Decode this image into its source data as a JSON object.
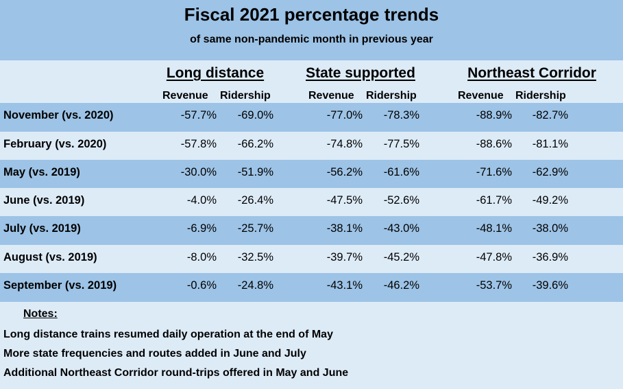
{
  "title": "Fiscal 2021 percentage trends",
  "subtitle": "of same non-pandemic month in previous year",
  "colors": {
    "dark_band": "#9dc3e6",
    "light_band": "#ddebf7"
  },
  "chart_data": {
    "type": "table",
    "groups": [
      {
        "name": "Long distance",
        "columns": [
          "Revenue",
          "Ridership"
        ]
      },
      {
        "name": "State supported",
        "columns": [
          "Revenue",
          "Ridership"
        ]
      },
      {
        "name": "Northeast Corridor",
        "columns": [
          "Revenue",
          "Ridership"
        ]
      }
    ],
    "rows": [
      {
        "label": "November (vs. 2020)",
        "values": [
          "-57.7%",
          "-69.0%",
          "-77.0%",
          "-78.3%",
          "-88.9%",
          "-82.7%"
        ]
      },
      {
        "label": "February (vs. 2020)",
        "values": [
          "-57.8%",
          "-66.2%",
          "-74.8%",
          "-77.5%",
          "-88.6%",
          "-81.1%"
        ]
      },
      {
        "label": "May (vs. 2019)",
        "values": [
          "-30.0%",
          "-51.9%",
          "-56.2%",
          "-61.6%",
          "-71.6%",
          "-62.9%"
        ]
      },
      {
        "label": "June (vs. 2019)",
        "values": [
          "-4.0%",
          "-26.4%",
          "-47.5%",
          "-52.6%",
          "-61.7%",
          "-49.2%"
        ]
      },
      {
        "label": "July (vs. 2019)",
        "values": [
          "-6.9%",
          "-25.7%",
          "-38.1%",
          "-43.0%",
          "-48.1%",
          "-38.0%"
        ]
      },
      {
        "label": "August (vs. 2019)",
        "values": [
          "-8.0%",
          "-32.5%",
          "-39.7%",
          "-45.2%",
          "-47.8%",
          "-36.9%"
        ]
      },
      {
        "label": "September (vs. 2019)",
        "values": [
          "-0.6%",
          "-24.8%",
          "-43.1%",
          "-46.2%",
          "-53.7%",
          "-39.6%"
        ]
      }
    ]
  },
  "notes": {
    "heading": "Notes:",
    "items": [
      "Long distance trains resumed daily operation at the end of May",
      "More state frequencies and routes added in June and July",
      "Additional Northeast Corridor round-trips offered in May and June"
    ]
  }
}
